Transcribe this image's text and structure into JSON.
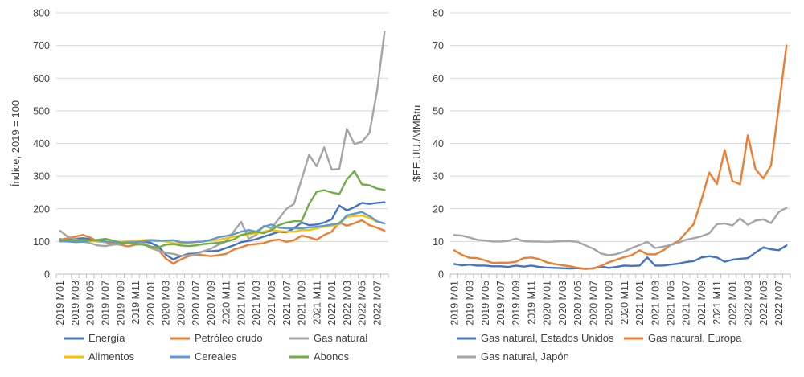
{
  "chart_data": [
    {
      "type": "line",
      "ylabel": "Índice, 2019 = 100",
      "ylim": [
        0,
        800
      ],
      "yticks": [
        0,
        100,
        200,
        300,
        400,
        500,
        600,
        700,
        800
      ],
      "grid": true,
      "legend_position": "bottom",
      "x": [
        "2019 M01",
        "2019 M02",
        "2019 M03",
        "2019 M04",
        "2019 M05",
        "2019 M06",
        "2019 M07",
        "2019 M08",
        "2019 M09",
        "2019 M10",
        "2019 M11",
        "2019 M12",
        "2020 M01",
        "2020 M02",
        "2020 M03",
        "2020 M04",
        "2020 M05",
        "2020 M06",
        "2020 M07",
        "2020 M08",
        "2020 M09",
        "2020 M10",
        "2020 M11",
        "2020 M12",
        "2021 M01",
        "2021 M02",
        "2021 M03",
        "2021 M04",
        "2021 M05",
        "2021 M06",
        "2021 M07",
        "2021 M08",
        "2021 M09",
        "2021 M10",
        "2021 M11",
        "2021 M12",
        "2022 M01",
        "2022 M02",
        "2022 M03",
        "2022 M04",
        "2022 M05",
        "2022 M06",
        "2022 M07",
        "2022 M08"
      ],
      "xtick_labels": [
        "2019 M01",
        "2019 M03",
        "2019 M05",
        "2019 M07",
        "2019 M09",
        "2019 M11",
        "2020 M01",
        "2020 M03",
        "2020 M05",
        "2020 M07",
        "2020 M09",
        "2020 M11",
        "2021 M01",
        "2021 M03",
        "2021 M05",
        "2021 M07",
        "2021 M09",
        "2021 M11",
        "2022 M01",
        "2022 M03",
        "2022 M05",
        "2022 M07"
      ],
      "series": [
        {
          "name": "Energía",
          "color": "#4472c4",
          "values": [
            107,
            105,
            108,
            110,
            107,
            103,
            100,
            97,
            98,
            100,
            102,
            100,
            96,
            85,
            60,
            45,
            55,
            62,
            63,
            70,
            70,
            72,
            80,
            88,
            98,
            102,
            107,
            115,
            122,
            130,
            128,
            140,
            158,
            150,
            152,
            158,
            168,
            210,
            195,
            205,
            218,
            215,
            218,
            220
          ]
        },
        {
          "name": "Petróleo crudo",
          "color": "#ed7d31",
          "values": [
            105,
            110,
            115,
            120,
            112,
            100,
            98,
            92,
            90,
            85,
            90,
            92,
            85,
            75,
            48,
            32,
            45,
            55,
            60,
            58,
            55,
            58,
            62,
            75,
            82,
            90,
            92,
            95,
            103,
            106,
            99,
            104,
            118,
            113,
            105,
            120,
            130,
            158,
            148,
            156,
            165,
            150,
            142,
            133
          ]
        },
        {
          "name": "Gas natural",
          "color": "#a5a5a5",
          "values": [
            133,
            115,
            108,
            100,
            95,
            88,
            86,
            90,
            92,
            95,
            93,
            95,
            80,
            72,
            65,
            62,
            56,
            58,
            60,
            70,
            78,
            90,
            100,
            130,
            160,
            108,
            120,
            148,
            140,
            170,
            200,
            215,
            290,
            365,
            330,
            388,
            320,
            322,
            445,
            398,
            405,
            432,
            560,
            742
          ]
        },
        {
          "name": "Alimentos",
          "color": "#ffc000",
          "values": [
            100,
            101,
            103,
            104,
            102,
            100,
            99,
            98,
            99,
            101,
            102,
            104,
            106,
            104,
            100,
            95,
            94,
            96,
            98,
            100,
            103,
            105,
            110,
            115,
            118,
            122,
            125,
            130,
            135,
            132,
            130,
            130,
            135,
            135,
            140,
            145,
            148,
            152,
            175,
            178,
            180,
            172,
            160,
            155
          ]
        },
        {
          "name": "Cereales",
          "color": "#5b9bd5",
          "values": [
            101,
            100,
            98,
            99,
            104,
            103,
            100,
            98,
            96,
            97,
            98,
            100,
            103,
            102,
            103,
            104,
            98,
            97,
            99,
            100,
            105,
            113,
            117,
            122,
            130,
            135,
            130,
            145,
            152,
            142,
            140,
            140,
            140,
            143,
            145,
            148,
            152,
            155,
            180,
            185,
            190,
            178,
            162,
            155
          ]
        },
        {
          "name": "Abonos",
          "color": "#70ad47",
          "values": [
            103,
            105,
            103,
            105,
            103,
            105,
            108,
            103,
            97,
            95,
            92,
            90,
            84,
            82,
            90,
            92,
            88,
            86,
            88,
            92,
            94,
            96,
            100,
            106,
            120,
            125,
            130,
            125,
            135,
            150,
            158,
            162,
            162,
            215,
            252,
            257,
            250,
            245,
            290,
            315,
            275,
            272,
            262,
            258
          ]
        }
      ]
    },
    {
      "type": "line",
      "ylabel": "$EE.UU./MMBtu",
      "ylim": [
        0,
        80
      ],
      "yticks": [
        0,
        10,
        20,
        30,
        40,
        50,
        60,
        70,
        80
      ],
      "grid": true,
      "legend_position": "bottom",
      "x": [
        "2019 M01",
        "2019 M02",
        "2019 M03",
        "2019 M04",
        "2019 M05",
        "2019 M06",
        "2019 M07",
        "2019 M08",
        "2019 M09",
        "2019 M10",
        "2019 M11",
        "2019 M12",
        "2020 M01",
        "2020 M02",
        "2020 M03",
        "2020 M04",
        "2020 M05",
        "2020 M06",
        "2020 M07",
        "2020 M08",
        "2020 M09",
        "2020 M10",
        "2020 M11",
        "2020 M12",
        "2021 M01",
        "2021 M02",
        "2021 M03",
        "2021 M04",
        "2021 M05",
        "2021 M06",
        "2021 M07",
        "2021 M08",
        "2021 M09",
        "2021 M10",
        "2021 M11",
        "2021 M12",
        "2022 M01",
        "2022 M02",
        "2022 M03",
        "2022 M04",
        "2022 M05",
        "2022 M06",
        "2022 M07",
        "2022 M08"
      ],
      "xtick_labels": [
        "2019 M01",
        "2019 M03",
        "2019 M05",
        "2019 M07",
        "2019 M09",
        "2019 M11",
        "2020 M01",
        "2020 M03",
        "2020 M05",
        "2020 M07",
        "2020 M09",
        "2020 M11",
        "2021 M01",
        "2021 M03",
        "2021 M05",
        "2021 M07",
        "2021 M09",
        "2021 M11",
        "2022 M01",
        "2022 M03",
        "2022 M05",
        "2022 M07"
      ],
      "series": [
        {
          "name": "Gas natural, Estados Unidos",
          "color": "#4472c4",
          "values": [
            3.1,
            2.7,
            2.9,
            2.6,
            2.6,
            2.4,
            2.4,
            2.2,
            2.6,
            2.3,
            2.6,
            2.2,
            2.0,
            1.9,
            1.8,
            1.7,
            1.8,
            1.6,
            1.8,
            2.3,
            1.9,
            2.2,
            2.6,
            2.5,
            2.6,
            5.1,
            2.6,
            2.6,
            2.9,
            3.2,
            3.7,
            4.0,
            5.1,
            5.5,
            5.1,
            3.8,
            4.4,
            4.7,
            4.9,
            6.6,
            8.2,
            7.6,
            7.3,
            8.8
          ]
        },
        {
          "name": "Gas natural, Europa",
          "color": "#ed7d31",
          "values": [
            7.3,
            5.9,
            5.0,
            4.9,
            4.2,
            3.4,
            3.5,
            3.5,
            3.8,
            4.9,
            5.1,
            4.6,
            3.6,
            3.1,
            2.7,
            2.4,
            1.9,
            1.6,
            1.7,
            2.5,
            3.6,
            4.4,
            5.2,
            5.8,
            7.3,
            6.1,
            6.0,
            7.2,
            8.9,
            10.1,
            12.7,
            15.3,
            22.7,
            31.1,
            27.6,
            38.0,
            28.5,
            27.5,
            42.5,
            32.1,
            29.3,
            33.3,
            51.2,
            70.0
          ]
        },
        {
          "name": "Gas natural, Japón",
          "color": "#a5a5a5",
          "values": [
            12.0,
            11.8,
            11.2,
            10.5,
            10.3,
            10.0,
            10.0,
            10.2,
            10.9,
            10.1,
            10.0,
            10.0,
            9.9,
            10.0,
            10.1,
            10.1,
            9.9,
            8.8,
            7.8,
            6.3,
            5.8,
            6.1,
            6.9,
            8.0,
            8.9,
            9.9,
            8.0,
            8.4,
            8.9,
            9.6,
            10.5,
            11.0,
            11.6,
            12.5,
            15.3,
            15.5,
            14.9,
            17.0,
            15.1,
            16.4,
            16.8,
            15.6,
            19.0,
            20.3
          ]
        }
      ]
    }
  ]
}
